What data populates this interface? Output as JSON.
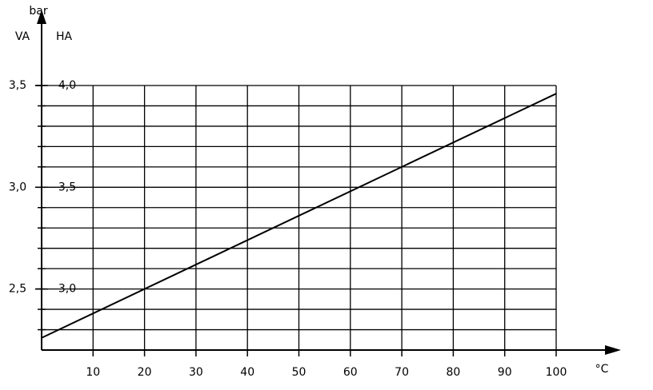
{
  "chart_data": {
    "type": "line",
    "unit_label": "bar",
    "y_axis_label": "HA",
    "y2_axis_label": "VA",
    "x_axis_label": "°C",
    "x": [
      0,
      100
    ],
    "values": [
      2.76,
      3.96
    ],
    "color": "#000000",
    "xlim": [
      0,
      100
    ],
    "xticks": [
      10,
      20,
      30,
      40,
      50,
      60,
      70,
      80,
      90,
      100
    ],
    "ylim": [
      2.7,
      4.0
    ],
    "yticks": [
      {
        "value": 3.0,
        "label": "3,0"
      },
      {
        "value": 3.5,
        "label": "3,5"
      },
      {
        "value": 4.0,
        "label": "4,0"
      }
    ],
    "y2lim": [
      2.2,
      3.5
    ],
    "y2ticks": [
      {
        "value": 2.5,
        "label": "2,5"
      },
      {
        "value": 3.0,
        "label": "3,0"
      },
      {
        "value": 3.5,
        "label": "3,5"
      }
    ],
    "ygrid": [
      2.8,
      2.9,
      3.0,
      3.1,
      3.2,
      3.3,
      3.4,
      3.5,
      3.6,
      3.7,
      3.8,
      3.9,
      4.0
    ],
    "grid": true
  }
}
